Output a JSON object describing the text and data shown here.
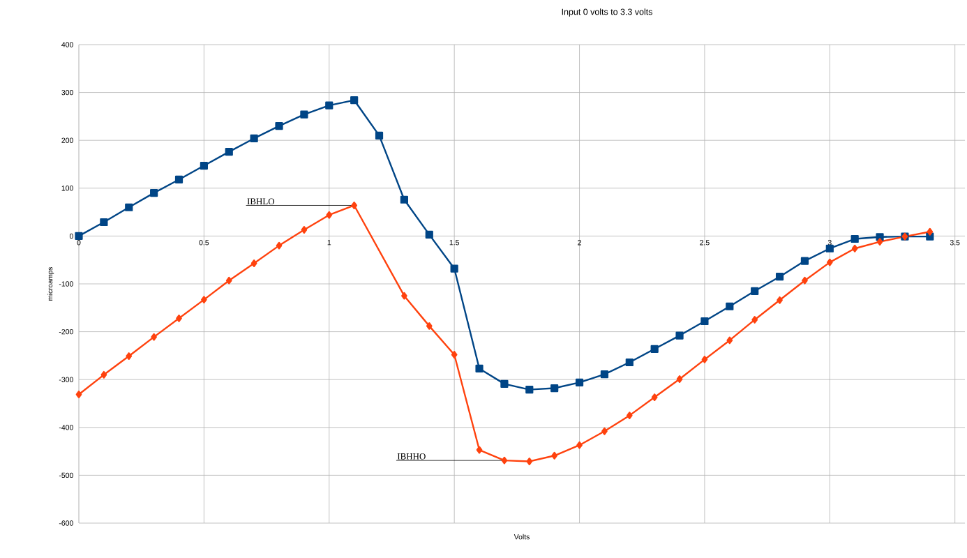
{
  "chart_data": {
    "type": "line",
    "title": "Input 0 volts to 3.3 volts",
    "xlabel": "Volts",
    "ylabel": "microamps",
    "x": [
      0,
      0.1,
      0.2,
      0.3,
      0.4,
      0.5,
      0.6,
      0.7,
      0.8,
      0.9,
      1.0,
      1.1,
      1.2,
      1.3,
      1.4,
      1.5,
      1.6,
      1.7,
      1.8,
      1.9,
      2.0,
      2.1,
      2.2,
      2.3,
      2.4,
      2.5,
      2.6,
      2.7,
      2.8,
      2.9,
      3.0,
      3.1,
      3.2,
      3.3,
      3.4
    ],
    "series": [
      {
        "color": "#004586",
        "marker": "square",
        "values": [
          0,
          29,
          60,
          90,
          118,
          147,
          176,
          204,
          230,
          254,
          273,
          284,
          210,
          76,
          3,
          -68,
          -277,
          -309,
          -321,
          -318,
          -306,
          -289,
          -264,
          -236,
          -208,
          -178,
          -147,
          -115,
          -85,
          -52,
          -26,
          -6,
          -2,
          -1,
          -1
        ]
      },
      {
        "color": "#ff420e",
        "marker": "diamond",
        "x": [
          0,
          0.1,
          0.2,
          0.3,
          0.4,
          0.5,
          0.6,
          0.7,
          0.8,
          0.9,
          1.0,
          1.1,
          1.3,
          1.4,
          1.5,
          1.6,
          1.7,
          1.8,
          1.9,
          2.0,
          2.1,
          2.2,
          2.3,
          2.4,
          2.5,
          2.6,
          2.7,
          2.8,
          2.9,
          3.0,
          3.1,
          3.2,
          3.3,
          3.4
        ],
        "values": [
          -331,
          -290,
          -251,
          -211,
          -172,
          -133,
          -93,
          -57,
          -20,
          13,
          44,
          64,
          -125,
          -188,
          -248,
          -447,
          -469,
          -471,
          -459,
          -437,
          -408,
          -375,
          -337,
          -299,
          -258,
          -218,
          -175,
          -134,
          -93,
          -55,
          -26,
          -12,
          -1,
          9
        ]
      }
    ],
    "xlim": [
      0,
      3.54
    ],
    "ylim": [
      -600,
      400
    ],
    "xticks": [
      0,
      0.5,
      1,
      1.5,
      2,
      2.5,
      3,
      3.5
    ],
    "yticks": [
      -600,
      -500,
      -400,
      -300,
      -200,
      -100,
      0,
      100,
      200,
      300,
      400
    ],
    "grid": true,
    "line_style": "solid",
    "annotations": [
      {
        "text": "IBHLO",
        "x": 1.1,
        "y": 64
      },
      {
        "text": "IBHHO",
        "x": 1.7,
        "y": -469
      }
    ]
  }
}
